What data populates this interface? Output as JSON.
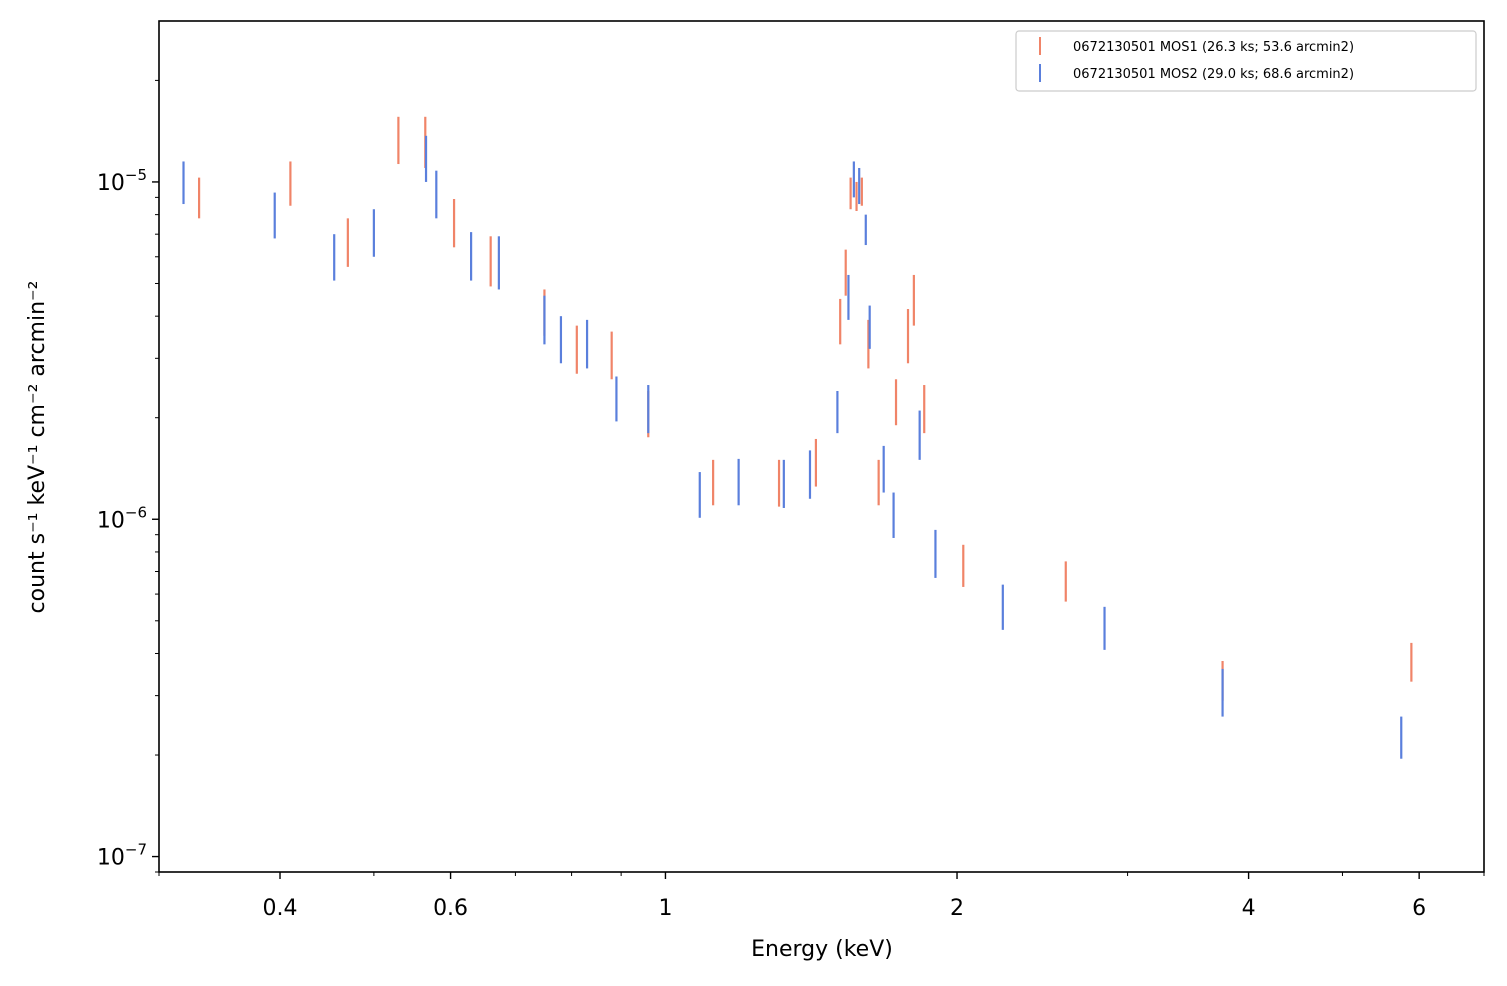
{
  "chart_data": {
    "type": "scatter",
    "title": "",
    "xlabel": "Energy (keV)",
    "ylabel": "count s⁻¹ keV⁻¹ cm⁻² arcmin⁻²",
    "xscale": "log",
    "yscale": "log",
    "xlim": [
      0.3,
      7.0
    ],
    "ylim": [
      9e-08,
      3e-05
    ],
    "x_major_ticks": [
      {
        "value": 0.4,
        "label": "0.4"
      },
      {
        "value": 0.6,
        "label": "0.6"
      },
      {
        "value": 1,
        "label": "1"
      },
      {
        "value": 2,
        "label": "2"
      },
      {
        "value": 4,
        "label": "4"
      },
      {
        "value": 6,
        "label": "6"
      }
    ],
    "y_major_ticks": [
      {
        "value": 1e-07,
        "base": "10",
        "exp": "−7"
      },
      {
        "value": 1e-06,
        "base": "10",
        "exp": "−6"
      },
      {
        "value": 1e-05,
        "base": "10",
        "exp": "−5"
      }
    ],
    "grid": false,
    "legend_position": "top-right",
    "series": [
      {
        "name": "0672130501 MOS1 (26.3 ks; 53.6 arcmin2)",
        "color": "#f08468",
        "style": "errorbar",
        "points": [
          [
            0.33,
            7.8e-06,
            1.03e-05
          ],
          [
            0.41,
            8.5e-06,
            1.15e-05
          ],
          [
            0.47,
            5.6e-06,
            7.8e-06
          ],
          [
            0.53,
            1.13e-05,
            1.56e-05
          ],
          [
            0.565,
            1.1e-05,
            1.56e-05
          ],
          [
            0.605,
            6.4e-06,
            8.9e-06
          ],
          [
            0.66,
            4.9e-06,
            6.9e-06
          ],
          [
            0.75,
            3.5e-06,
            4.8e-06
          ],
          [
            0.81,
            2.7e-06,
            3.75e-06
          ],
          [
            0.88,
            2.6e-06,
            3.6e-06
          ],
          [
            0.96,
            1.75e-06,
            2.4e-06
          ],
          [
            1.12,
            1.1e-06,
            1.5e-06
          ],
          [
            1.31,
            1.09e-06,
            1.5e-06
          ],
          [
            1.43,
            1.25e-06,
            1.73e-06
          ],
          [
            1.515,
            3.3e-06,
            4.5e-06
          ],
          [
            1.535,
            4.6e-06,
            6.3e-06
          ],
          [
            1.553,
            8.3e-06,
            1.03e-05
          ],
          [
            1.575,
            8.2e-06,
            1e-05
          ],
          [
            1.595,
            8.5e-06,
            1.03e-05
          ],
          [
            1.62,
            2.8e-06,
            3.9e-06
          ],
          [
            1.66,
            1.1e-06,
            1.5e-06
          ],
          [
            1.73,
            1.9e-06,
            2.6e-06
          ],
          [
            1.78,
            2.9e-06,
            4.2e-06
          ],
          [
            1.805,
            3.75e-06,
            5.3e-06
          ],
          [
            1.85,
            1.8e-06,
            2.5e-06
          ],
          [
            2.03,
            6.3e-07,
            8.4e-07
          ],
          [
            2.59,
            5.7e-07,
            7.5e-07
          ],
          [
            3.76,
            2.9e-07,
            3.8e-07
          ],
          [
            5.89,
            3.3e-07,
            4.3e-07
          ]
        ]
      },
      {
        "name": "0672130501 MOS2 (29.0 ks; 68.6 arcmin2)",
        "color": "#5a7fdc",
        "style": "errorbar",
        "points": [
          [
            0.318,
            8.6e-06,
            1.15e-05
          ],
          [
            0.395,
            6.8e-06,
            9.3e-06
          ],
          [
            0.455,
            5.1e-06,
            7e-06
          ],
          [
            0.5,
            6e-06,
            8.3e-06
          ],
          [
            0.566,
            1e-05,
            1.37e-05
          ],
          [
            0.58,
            7.8e-06,
            1.08e-05
          ],
          [
            0.63,
            5.1e-06,
            7.1e-06
          ],
          [
            0.673,
            4.8e-06,
            6.9e-06
          ],
          [
            0.75,
            3.3e-06,
            4.6e-06
          ],
          [
            0.78,
            2.9e-06,
            4e-06
          ],
          [
            0.83,
            2.8e-06,
            3.9e-06
          ],
          [
            0.89,
            1.95e-06,
            2.65e-06
          ],
          [
            0.96,
            1.8e-06,
            2.5e-06
          ],
          [
            1.085,
            1.01e-06,
            1.38e-06
          ],
          [
            1.19,
            1.1e-06,
            1.51e-06
          ],
          [
            1.325,
            1.08e-06,
            1.5e-06
          ],
          [
            1.41,
            1.15e-06,
            1.6e-06
          ],
          [
            1.505,
            1.8e-06,
            2.4e-06
          ],
          [
            1.545,
            3.9e-06,
            5.3e-06
          ],
          [
            1.565,
            9e-06,
            1.15e-05
          ],
          [
            1.585,
            8.6e-06,
            1.1e-05
          ],
          [
            1.61,
            6.5e-06,
            8e-06
          ],
          [
            1.625,
            3.2e-06,
            4.3e-06
          ],
          [
            1.68,
            1.2e-06,
            1.65e-06
          ],
          [
            1.72,
            8.8e-07,
            1.2e-06
          ],
          [
            1.83,
            1.5e-06,
            2.1e-06
          ],
          [
            1.9,
            6.7e-07,
            9.3e-07
          ],
          [
            2.23,
            4.7e-07,
            6.4e-07
          ],
          [
            2.84,
            4.1e-07,
            5.5e-07
          ],
          [
            3.76,
            2.6e-07,
            3.6e-07
          ],
          [
            5.75,
            1.95e-07,
            2.6e-07
          ]
        ]
      }
    ]
  }
}
